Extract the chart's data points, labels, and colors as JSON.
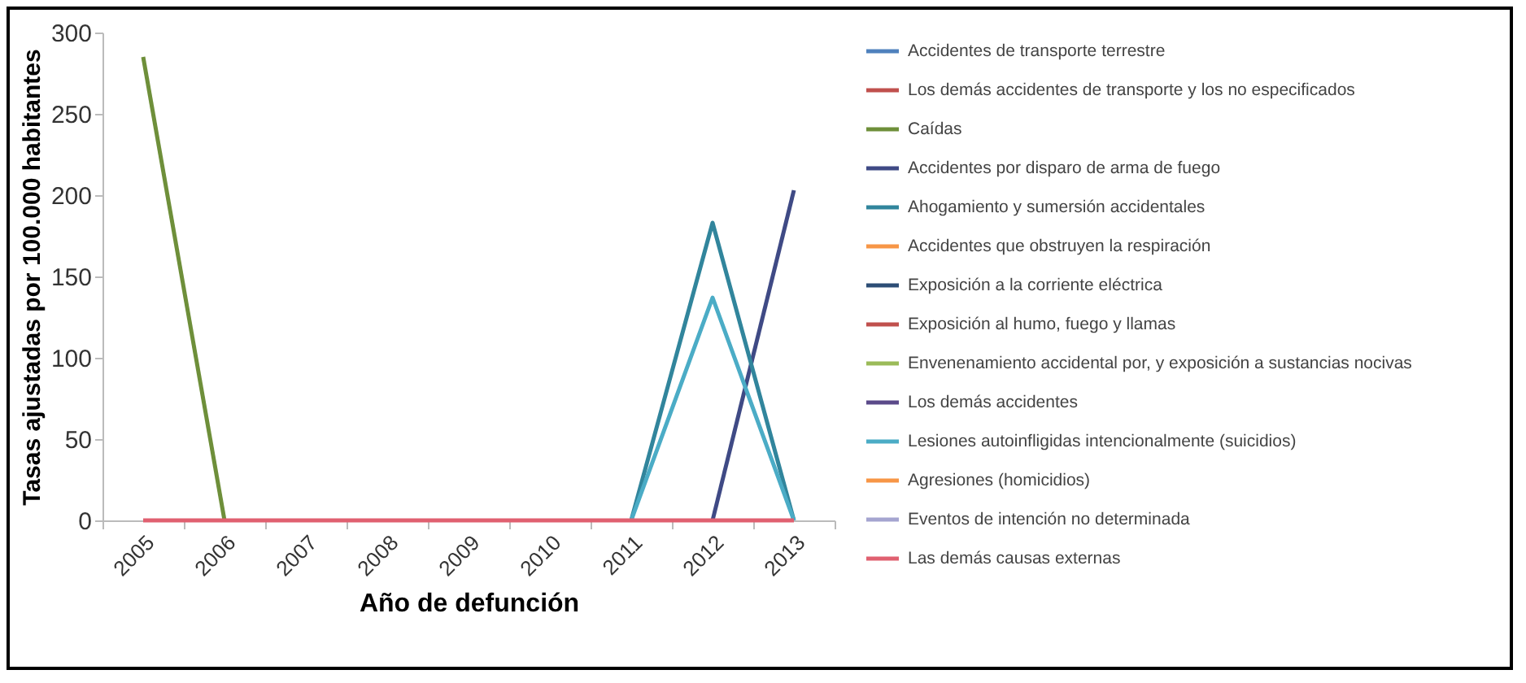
{
  "chart_data": {
    "type": "line",
    "xlabel": "Año de defunción",
    "ylabel": "Tasas ajustadas por 100.000 habitantes",
    "categories": [
      "2005",
      "2006",
      "2007",
      "2008",
      "2009",
      "2010",
      "2011",
      "2012",
      "2013"
    ],
    "ylim": [
      0,
      300
    ],
    "yticks": [
      0,
      50,
      100,
      150,
      200,
      250,
      300
    ],
    "grid": false,
    "legend": "right",
    "series": [
      {
        "name": "Accidentes de transporte terrestre",
        "color": "#4f81bd",
        "values": [
          null,
          null,
          null,
          null,
          null,
          null,
          null,
          null,
          null
        ]
      },
      {
        "name": "Los demás accidentes de transporte y los no especificados",
        "color": "#c0504d",
        "values": [
          null,
          null,
          null,
          null,
          null,
          null,
          null,
          null,
          null
        ]
      },
      {
        "name": "Caídas",
        "color": "#6e8f3a",
        "values": [
          285,
          0,
          null,
          null,
          null,
          null,
          null,
          null,
          null
        ]
      },
      {
        "name": "Accidentes por disparo de arma de fuego",
        "color": "#3f4a85",
        "values": [
          null,
          null,
          null,
          null,
          null,
          null,
          null,
          0,
          203
        ]
      },
      {
        "name": "Ahogamiento y sumersión accidentales",
        "color": "#31859c",
        "values": [
          null,
          null,
          null,
          null,
          null,
          null,
          0,
          183,
          0
        ]
      },
      {
        "name": "Accidentes que obstruyen la respiración",
        "color": "#f79646",
        "values": [
          null,
          null,
          null,
          null,
          null,
          null,
          null,
          null,
          null
        ]
      },
      {
        "name": "Exposición a la corriente eléctrica",
        "color": "#2c4d75",
        "values": [
          null,
          null,
          null,
          null,
          null,
          null,
          null,
          null,
          null
        ]
      },
      {
        "name": "Exposición al humo, fuego y llamas",
        "color": "#c0504d",
        "values": [
          null,
          null,
          null,
          null,
          null,
          null,
          null,
          null,
          null
        ]
      },
      {
        "name": "Envenenamiento accidental por, y exposición a sustancias nocivas",
        "color": "#9bbb59",
        "values": [
          null,
          null,
          null,
          null,
          null,
          null,
          null,
          null,
          null
        ]
      },
      {
        "name": "Los demás accidentes",
        "color": "#5b4a8a",
        "values": [
          null,
          null,
          null,
          null,
          null,
          null,
          null,
          null,
          null
        ]
      },
      {
        "name": "Lesiones autoinfligidas intencionalmente (suicidios)",
        "color": "#4bacc6",
        "values": [
          null,
          null,
          null,
          null,
          null,
          null,
          0,
          137,
          0
        ]
      },
      {
        "name": "Agresiones (homicidios)",
        "color": "#f79646",
        "values": [
          null,
          null,
          null,
          null,
          null,
          null,
          null,
          null,
          null
        ]
      },
      {
        "name": "Eventos de intención no determinada",
        "color": "#a5a5d0",
        "values": [
          null,
          null,
          null,
          null,
          null,
          null,
          null,
          null,
          null
        ]
      },
      {
        "name": "Las demás causas externas",
        "color": "#e06070",
        "values": [
          0,
          0,
          0,
          0,
          0,
          0,
          0,
          0,
          0
        ]
      }
    ]
  }
}
